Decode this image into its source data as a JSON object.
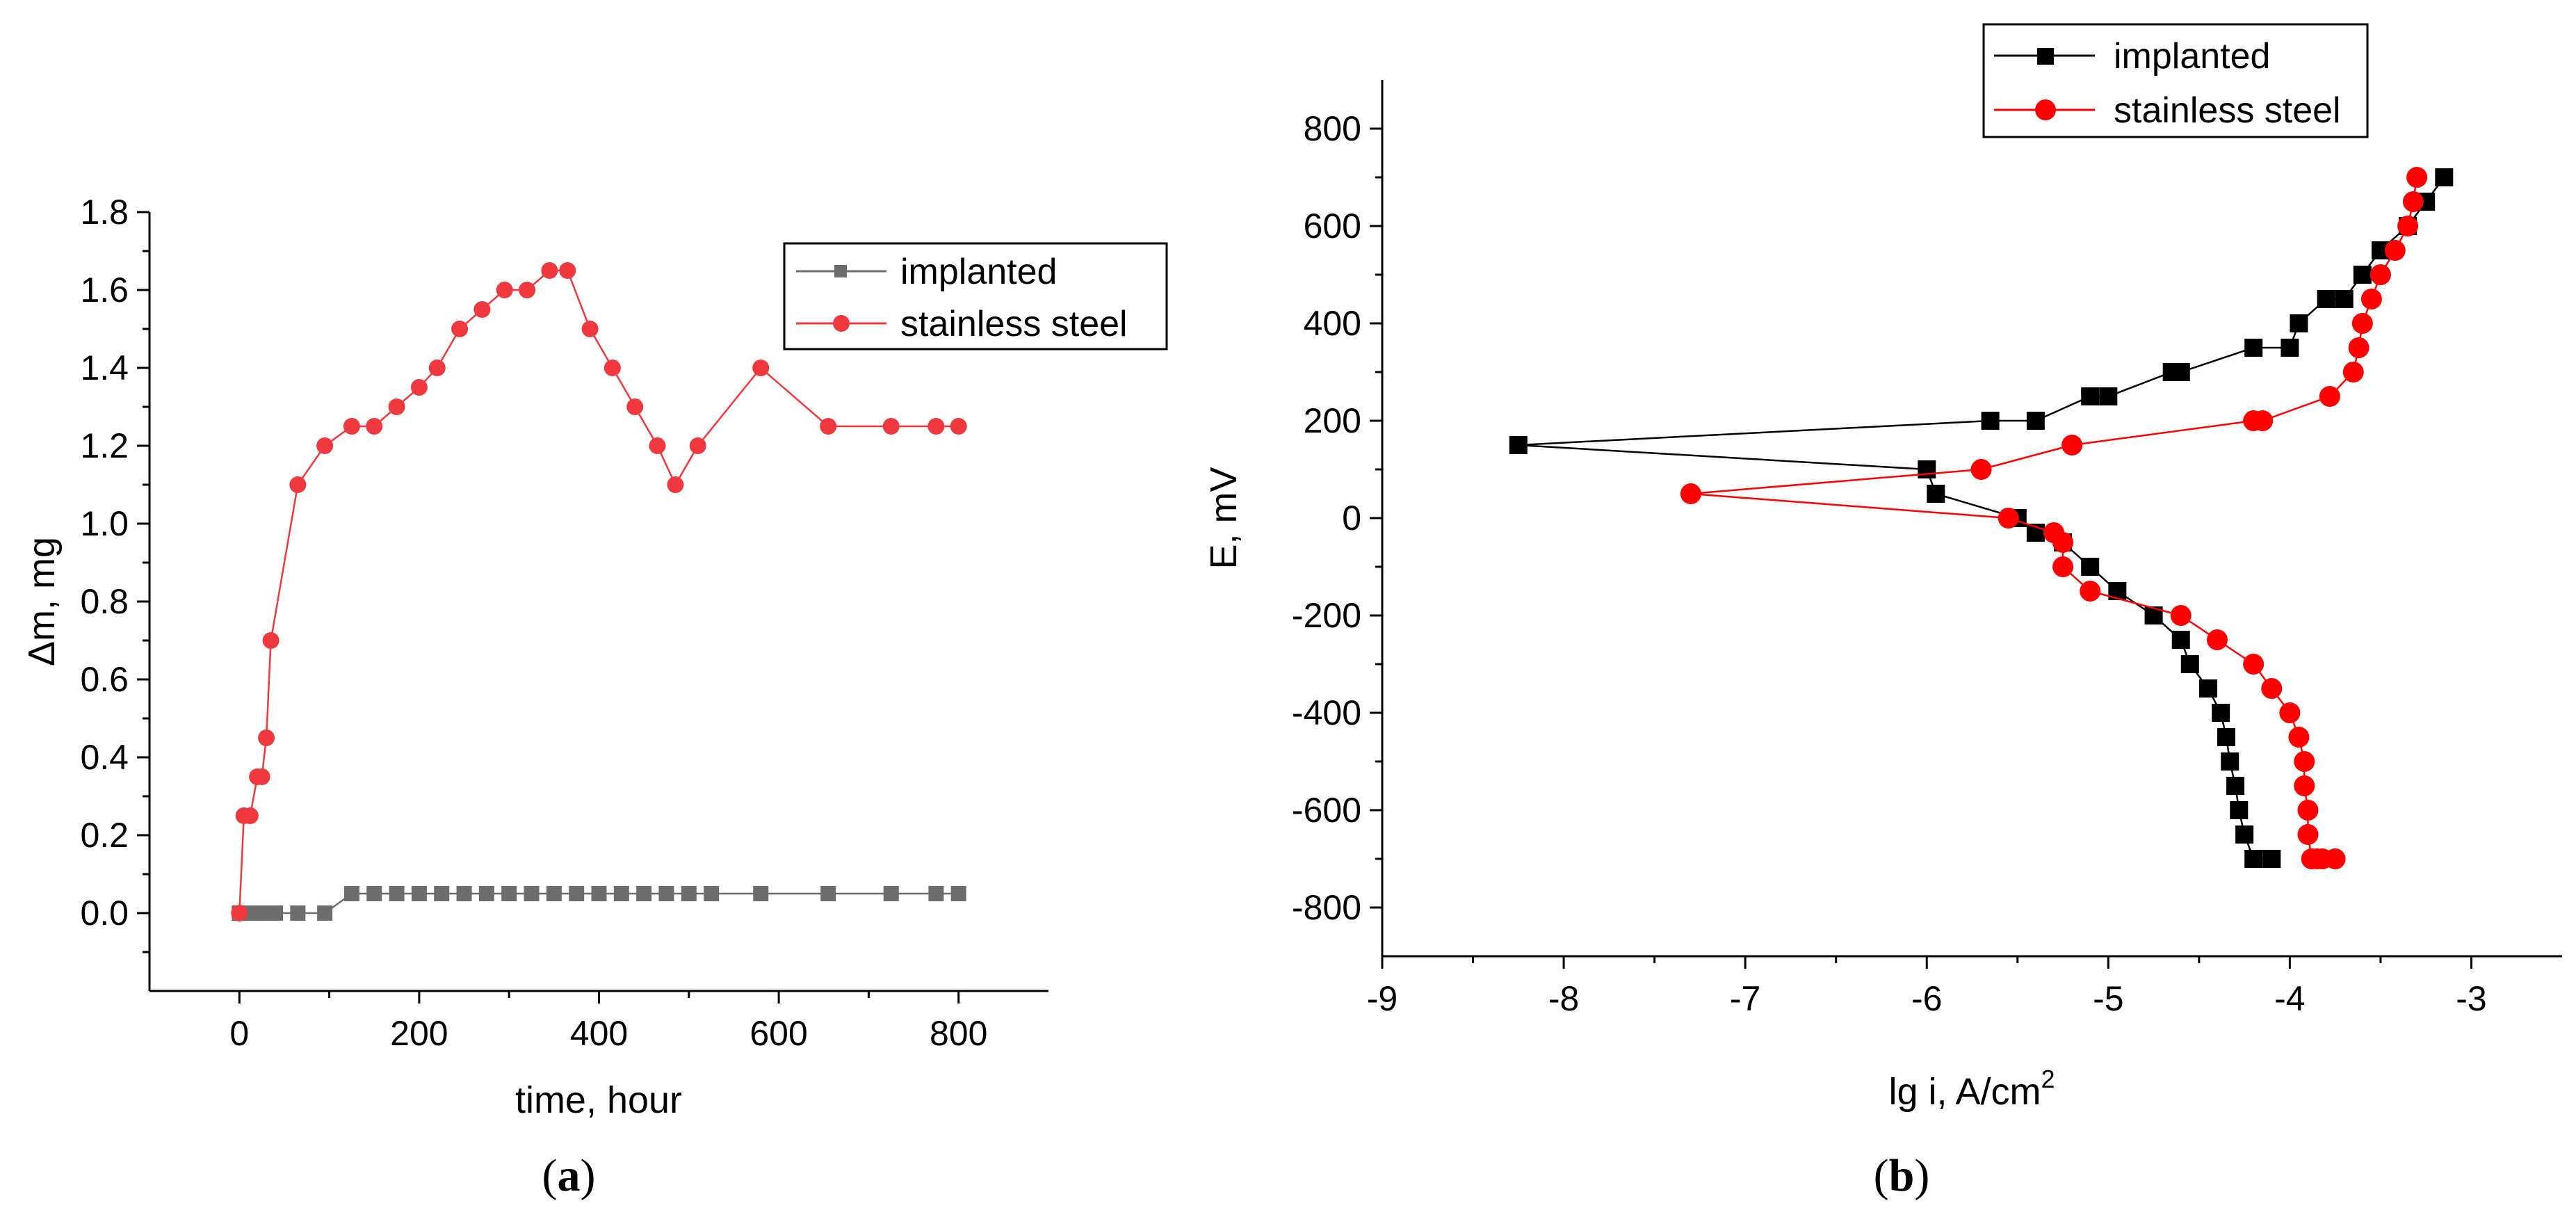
{
  "chart_data": [
    {
      "type": "line",
      "panel": "a",
      "caption_open": "(",
      "caption_letter": "a",
      "caption_close": ")",
      "xlabel": "time, hour",
      "ylabel": "Δm, mg",
      "xlim": [
        -100,
        900
      ],
      "ylim": [
        -0.2,
        1.8
      ],
      "xticks": [
        0,
        200,
        400,
        600,
        800
      ],
      "xtick_labels": [
        "0",
        "200",
        "400",
        "600",
        "800"
      ],
      "yticks": [
        0.0,
        0.2,
        0.4,
        0.6,
        0.8,
        1.0,
        1.2,
        1.4,
        1.6,
        1.8
      ],
      "ytick_labels": [
        "0.0",
        "0.2",
        "0.4",
        "0.6",
        "0.8",
        "1.0",
        "1.2",
        "1.4",
        "1.6",
        "1.8"
      ],
      "legend_position": "top-right",
      "series": [
        {
          "name": "implanted",
          "color": "#6d6d6d",
          "marker": "square",
          "x": [
            0,
            10,
            20,
            30,
            40,
            65,
            95,
            125,
            150,
            175,
            200,
            225,
            250,
            275,
            300,
            325,
            350,
            375,
            400,
            425,
            450,
            475,
            500,
            525,
            580,
            655,
            725,
            775,
            800
          ],
          "y": [
            0,
            0,
            0,
            0,
            0,
            0,
            0,
            0.05,
            0.05,
            0.05,
            0.05,
            0.05,
            0.05,
            0.05,
            0.05,
            0.05,
            0.05,
            0.05,
            0.05,
            0.05,
            0.05,
            0.05,
            0.05,
            0.05,
            0.05,
            0.05,
            0.05,
            0.05,
            0.05
          ]
        },
        {
          "name": "stainless steel",
          "color": "#f0383f",
          "marker": "circle",
          "x": [
            0,
            5,
            12,
            20,
            25,
            30,
            35,
            65,
            95,
            125,
            150,
            175,
            200,
            220,
            245,
            270,
            295,
            320,
            345,
            365,
            390,
            415,
            440,
            465,
            485,
            510,
            580,
            655,
            725,
            775,
            800
          ],
          "y": [
            0,
            0.25,
            0.25,
            0.35,
            0.35,
            0.45,
            0.7,
            1.1,
            1.2,
            1.25,
            1.25,
            1.3,
            1.35,
            1.4,
            1.5,
            1.55,
            1.6,
            1.6,
            1.65,
            1.65,
            1.5,
            1.4,
            1.3,
            1.2,
            1.1,
            1.2,
            1.4,
            1.25,
            1.25,
            1.25,
            1.25
          ]
        }
      ]
    },
    {
      "type": "line",
      "panel": "b",
      "caption_open": "(",
      "caption_letter": "b",
      "caption_close": ")",
      "xlabel_main": "lg i, A/cm",
      "xlabel_sup": "2",
      "ylabel": "E, mV",
      "xlim": [
        -9,
        -2.5
      ],
      "ylim": [
        -900,
        900
      ],
      "xticks": [
        -9,
        -8,
        -7,
        -6,
        -5,
        -4,
        -3
      ],
      "xtick_labels": [
        "-9",
        "-8",
        "-7",
        "-6",
        "-5",
        "-4",
        "-3"
      ],
      "yticks": [
        -800,
        -600,
        -400,
        -200,
        0,
        200,
        400,
        600,
        800
      ],
      "ytick_labels": [
        "-800",
        "-600",
        "-400",
        "-200",
        "0",
        "200",
        "400",
        "600",
        "800"
      ],
      "legend_position": "top-right",
      "series": [
        {
          "name": "implanted",
          "color": "#000000",
          "marker": "square",
          "x": [
            -3.15,
            -3.25,
            -3.35,
            -3.5,
            -3.6,
            -3.7,
            -3.8,
            -3.95,
            -4.0,
            -4.2,
            -4.6,
            -4.65,
            -5.0,
            -5.1,
            -5.4,
            -5.65,
            -8.25,
            -6.0,
            -5.95,
            -5.5,
            -5.4,
            -5.25,
            -5.1,
            -4.95,
            -4.75,
            -4.6,
            -4.55,
            -4.45,
            -4.38,
            -4.35,
            -4.33,
            -4.3,
            -4.28,
            -4.25,
            -4.2,
            -4.1
          ],
          "y": [
            700,
            650,
            600,
            550,
            500,
            450,
            450,
            400,
            350,
            350,
            300,
            300,
            250,
            250,
            200,
            200,
            150,
            100,
            50,
            0,
            -30,
            -50,
            -100,
            -150,
            -200,
            -250,
            -300,
            -350,
            -400,
            -450,
            -500,
            -550,
            -600,
            -650,
            -700,
            -700
          ]
        },
        {
          "name": "stainless steel",
          "color": "#ff0000",
          "marker": "circle",
          "x": [
            -3.3,
            -3.32,
            -3.35,
            -3.42,
            -3.5,
            -3.55,
            -3.6,
            -3.62,
            -3.65,
            -3.78,
            -4.15,
            -4.2,
            -5.2,
            -5.7,
            -7.3,
            -5.55,
            -5.3,
            -5.25,
            -5.25,
            -5.1,
            -4.6,
            -4.4,
            -4.2,
            -4.1,
            -4.0,
            -3.95,
            -3.92,
            -3.92,
            -3.9,
            -3.9,
            -3.88,
            -3.85,
            -3.82,
            -3.75
          ],
          "y": [
            700,
            650,
            600,
            550,
            500,
            450,
            400,
            350,
            300,
            250,
            200,
            200,
            150,
            100,
            50,
            0,
            -30,
            -50,
            -100,
            -150,
            -200,
            -250,
            -300,
            -350,
            -400,
            -450,
            -500,
            -550,
            -600,
            -650,
            -700,
            -700,
            -700,
            -700
          ]
        }
      ]
    }
  ]
}
